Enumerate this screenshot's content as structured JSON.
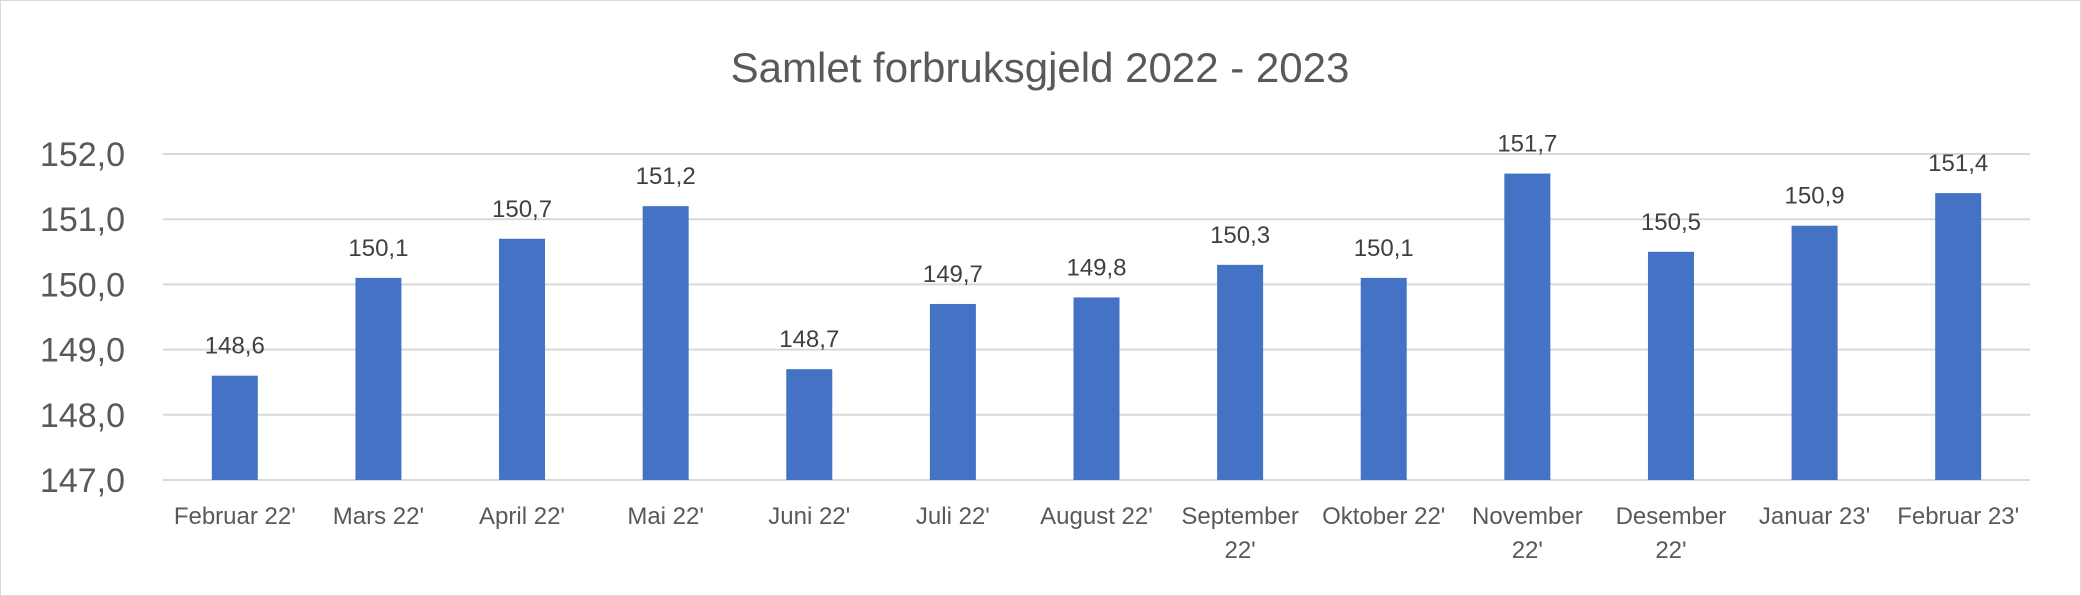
{
  "chart_data": {
    "type": "bar",
    "title": "Samlet forbruksgjeld 2022 - 2023",
    "xlabel": "",
    "ylabel": "",
    "categories": [
      [
        "Februar 22'"
      ],
      [
        "Mars 22'"
      ],
      [
        "April 22'"
      ],
      [
        "Mai 22'"
      ],
      [
        "Juni 22'"
      ],
      [
        "Juli 22'"
      ],
      [
        "August 22'"
      ],
      [
        "September",
        "22'"
      ],
      [
        "Oktober 22'"
      ],
      [
        "November",
        "22'"
      ],
      [
        "Desember",
        "22'"
      ],
      [
        "Januar 23'"
      ],
      [
        "Februar 23'"
      ]
    ],
    "values": [
      148.6,
      150.1,
      150.7,
      151.2,
      148.7,
      149.7,
      149.8,
      150.3,
      150.1,
      151.7,
      150.5,
      150.9,
      151.4
    ],
    "data_labels": [
      "148,6",
      "150,1",
      "150,7",
      "151,2",
      "148,7",
      "149,7",
      "149,8",
      "150,3",
      "150,1",
      "151,7",
      "150,5",
      "150,9",
      "151,4"
    ],
    "yticks": [
      147,
      148,
      149,
      150,
      151,
      152
    ],
    "ytick_labels": [
      "147,0",
      "148,0",
      "149,0",
      "150,0",
      "151,0",
      "152,0"
    ],
    "ylim": [
      147,
      152
    ],
    "grid": true,
    "legend": "none",
    "bar_color": "#4472c4"
  }
}
